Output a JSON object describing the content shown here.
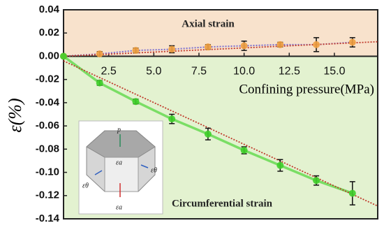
{
  "chart_data": {
    "type": "line",
    "x_label": "Confining pressure(MPa)",
    "y_label": "ε(%)",
    "annotations": [
      "Axial strain",
      "Circumferential strain"
    ],
    "xlim": [
      0,
      17.4
    ],
    "ylim": [
      -0.14,
      0.04
    ],
    "xticks": [
      2.5,
      {
        "value": 5,
        "label": "5.0"
      },
      7.5,
      {
        "value": 10,
        "label": "10.0"
      },
      12.5,
      {
        "value": 15,
        "label": "15.0"
      }
    ],
    "yticks": [
      0.04,
      0.02,
      {
        "value": 0,
        "label": "0.00"
      },
      -0.02,
      -0.04,
      -0.06,
      -0.08,
      {
        "value": -0.1,
        "label": "-0.10"
      },
      -0.12,
      -0.14
    ],
    "regions": [
      {
        "from": 0,
        "to": 0.04,
        "color": "#f8e2cc"
      },
      {
        "from": -0.14,
        "to": 0,
        "color": "#e3f2d0"
      }
    ],
    "series": [
      {
        "x": [
          0,
          2,
          4,
          6,
          8,
          10,
          12,
          14,
          16
        ],
        "values": [
          0,
          0.002,
          0.005,
          0.006,
          0.008,
          0.009,
          0.01,
          0.01,
          0.012
        ],
        "errors": [
          0,
          0.002,
          0.002,
          0.003,
          0.002,
          0.004,
          0.002,
          0.006,
          0.004
        ],
        "color": "#7a6fd0",
        "marker_color": "#f0a040",
        "style": "dotted"
      },
      {
        "x": [
          0,
          2,
          4,
          6,
          8,
          10,
          12,
          14,
          16
        ],
        "values": [
          0,
          -0.023,
          -0.039,
          -0.054,
          -0.067,
          -0.081,
          -0.094,
          -0.107,
          -0.118
        ],
        "errors": [
          0,
          0.002,
          0.002,
          0.004,
          0.005,
          0.003,
          0.005,
          0.004,
          0.01
        ],
        "color": "#5fd84a",
        "marker_color": "#3fcf2a",
        "style": "solid"
      },
      {
        "x": [
          0,
          17.4
        ],
        "values": [
          0,
          0.0125
        ],
        "color": "#c0392b",
        "style": "fit"
      },
      {
        "x": [
          0,
          17.4
        ],
        "values": [
          -0.004,
          -0.129
        ],
        "color": "#c0392b",
        "style": "fit"
      }
    ],
    "inset_labels": [
      "p",
      "εa",
      "εθ",
      "εθ",
      "εa"
    ]
  }
}
